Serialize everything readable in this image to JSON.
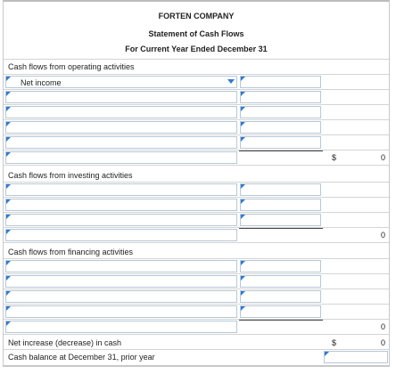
{
  "header": {
    "company": "FORTEN COMPANY",
    "statement": "Statement of Cash Flows",
    "period": "For Current Year Ended December 31"
  },
  "operating": {
    "section_label": "Cash flows from operating activities",
    "first_item": "Net income",
    "dollar": "$",
    "total": "0"
  },
  "investing": {
    "section_label": "Cash flows from investing activities",
    "total": "0"
  },
  "financing": {
    "section_label": "Cash flows from financing activities",
    "total": "0"
  },
  "summary": {
    "net_change_label": "Net increase (decrease) in cash",
    "net_change_dollar": "$",
    "net_change_value": "0",
    "beginning_label": "Cash balance at December 31, prior year"
  },
  "colors": {
    "input_border": "#b7c8d8",
    "marker": "#2f7bd0"
  }
}
